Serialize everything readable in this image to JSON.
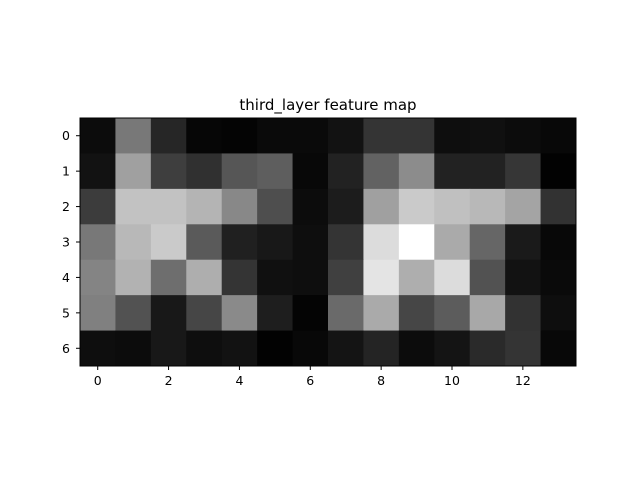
{
  "chart_data": {
    "type": "heatmap",
    "title": "third_layer feature map",
    "colormap": "gray",
    "xlabel": "",
    "ylabel": "",
    "xticks": [
      0,
      2,
      4,
      6,
      8,
      10,
      12
    ],
    "yticks": [
      0,
      1,
      2,
      3,
      4,
      5,
      6
    ],
    "xlim": [
      -0.5,
      13.5
    ],
    "ylim": [
      6.5,
      -0.5
    ],
    "grid": false,
    "values": [
      [
        12,
        120,
        38,
        6,
        4,
        10,
        10,
        18,
        52,
        52,
        14,
        16,
        12,
        8
      ],
      [
        18,
        160,
        62,
        48,
        86,
        94,
        8,
        34,
        98,
        140,
        34,
        34,
        54,
        2
      ],
      [
        60,
        194,
        194,
        180,
        136,
        78,
        12,
        28,
        160,
        202,
        192,
        184,
        164,
        50
      ],
      [
        120,
        184,
        202,
        90,
        32,
        24,
        14,
        52,
        220,
        255,
        170,
        102,
        26,
        8
      ],
      [
        132,
        178,
        110,
        174,
        52,
        16,
        14,
        64,
        228,
        174,
        220,
        82,
        18,
        10
      ],
      [
        128,
        82,
        24,
        70,
        138,
        30,
        4,
        106,
        170,
        70,
        92,
        168,
        50,
        14
      ],
      [
        14,
        12,
        24,
        14,
        18,
        2,
        8,
        20,
        36,
        12,
        20,
        42,
        52,
        8
      ]
    ]
  }
}
